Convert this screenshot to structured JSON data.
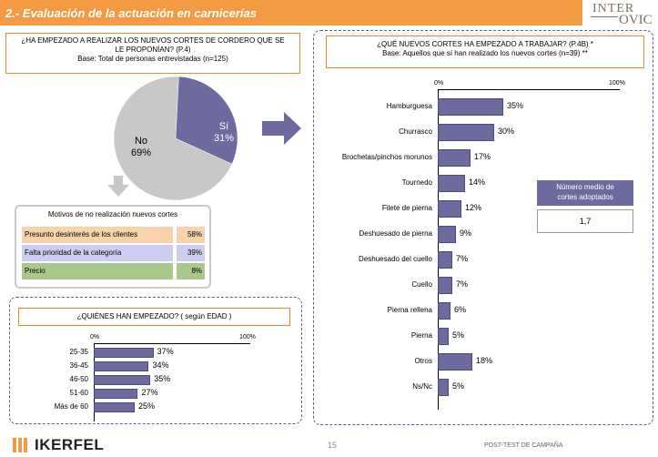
{
  "title": "2.- Evaluación de la actuación en carnicerías",
  "logo": {
    "line1": "INTER",
    "line2": "OVIC"
  },
  "left_question": {
    "line1": "¿HA EMPEZADO A REALIZAR LOS NUEVOS CORTES DE CORDERO QUE SE",
    "line2": "LE PROPONÍAN? (P.4)",
    "base": "Base: Total de personas entrevistadas (n=125)"
  },
  "pie": {
    "yes_label": "Sí",
    "yes_value": "31%",
    "no_label": "No",
    "no_value": "69%",
    "yes_pct": 31
  },
  "motivos": {
    "title": "Motivos de no realización nuevos cortes",
    "rows": [
      {
        "text": "Presunto desinterés de los clientes",
        "pct": "58%",
        "color": "#f8d2ad"
      },
      {
        "text": "Falta prioridad de la categoría",
        "pct": "39%",
        "color": "#cdcdf3"
      },
      {
        "text": "Precio",
        "pct": "8%",
        "color": "#a9c98a"
      }
    ]
  },
  "age_question": "¿QUIÉNES HAN EMPEZADO? ( según EDAD )",
  "right_question": {
    "line1": "¿QUÉ NUEVOS CORTES HA EMPEZADO A TRABAJAR? (P.4B)  *",
    "line2": "Base: Aquellos que  sí han realizado los nuevos cortes (n=39) **"
  },
  "numero_medio": {
    "label_line1": "Número medio de",
    "label_line2": "cortes adoptados",
    "value": "1,7"
  },
  "footer": {
    "page": "15",
    "text": "POST-TEST DE CAMPAÑA",
    "brand": "IKERFEL"
  },
  "chart_data": [
    {
      "type": "pie",
      "categories": [
        "Sí",
        "No"
      ],
      "values": [
        31,
        69
      ]
    },
    {
      "type": "bar",
      "orientation": "horizontal",
      "categories": [
        "25-35",
        "36-45",
        "46-50",
        "51-60",
        "Más de 60"
      ],
      "values": [
        37,
        34,
        35,
        27,
        25
      ],
      "value_labels": [
        "37%",
        "34%",
        "35%",
        "27%",
        "25%"
      ],
      "axis_labels": [
        "0%",
        "100%"
      ],
      "xlim": [
        0,
        100
      ]
    },
    {
      "type": "bar",
      "orientation": "horizontal",
      "categories": [
        "Hamburguesa",
        "Churrasco",
        "Brochetas/pinchos morunos",
        "Tournedo",
        "Filete de pierna",
        "Deshuesado de pierna",
        "Deshuesado del cuello",
        "Cuello",
        "Pierna rellena",
        "Pierna",
        "Otros",
        "Ns/Nc"
      ],
      "values": [
        35,
        30,
        17,
        14,
        12,
        9,
        7,
        7,
        6,
        5,
        18,
        5
      ],
      "value_labels": [
        "35%",
        "30%",
        "17%",
        "14%",
        "12%",
        "9%",
        "7%",
        "7%",
        "6%",
        "5%",
        "18%",
        "5%"
      ],
      "axis_labels": [
        "0%",
        "100%"
      ],
      "xlim": [
        0,
        100
      ]
    }
  ]
}
